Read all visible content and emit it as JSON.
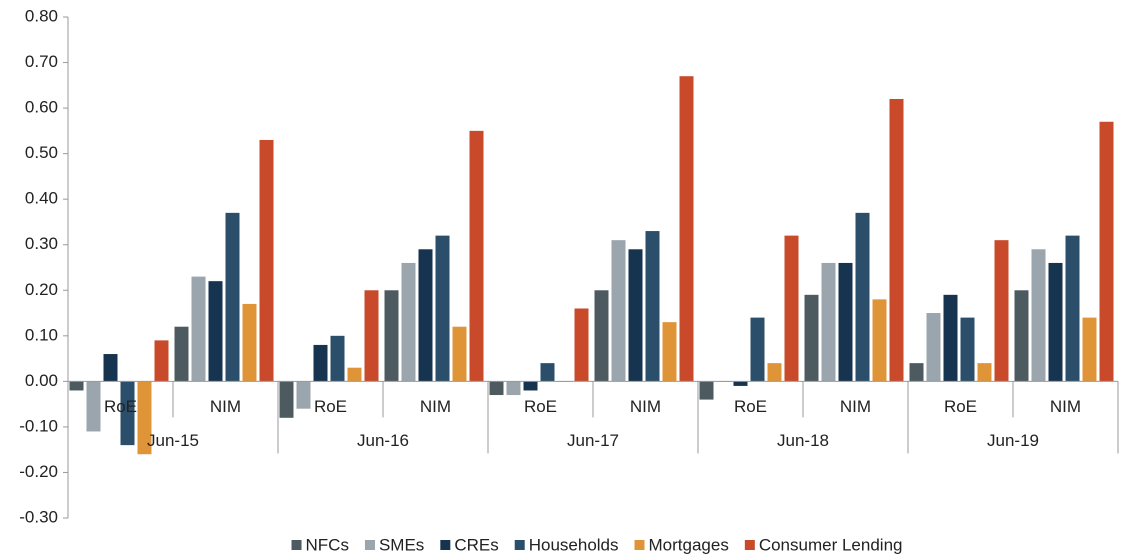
{
  "chart_data": {
    "type": "bar",
    "categories": [
      "RoE",
      "NIM",
      "RoE",
      "NIM",
      "RoE",
      "NIM",
      "RoE",
      "NIM",
      "RoE",
      "NIM"
    ],
    "category_groups": [
      "Jun-15",
      "Jun-16",
      "Jun-17",
      "Jun-18",
      "Jun-19"
    ],
    "series": [
      {
        "name": "NFCs",
        "color": "#4d5a60",
        "values": [
          -0.02,
          0.12,
          -0.08,
          0.2,
          -0.03,
          0.2,
          -0.04,
          0.19,
          0.04,
          0.2
        ]
      },
      {
        "name": "SMEs",
        "color": "#9aa5ad",
        "values": [
          -0.11,
          0.23,
          -0.06,
          0.26,
          -0.03,
          0.31,
          0.0,
          0.26,
          0.15,
          0.29
        ]
      },
      {
        "name": "CREs",
        "color": "#16334f",
        "values": [
          0.06,
          0.22,
          0.08,
          0.29,
          -0.02,
          0.29,
          -0.01,
          0.26,
          0.19,
          0.26
        ]
      },
      {
        "name": "Households",
        "color": "#2b4f6b",
        "values": [
          -0.14,
          0.37,
          0.1,
          0.32,
          0.04,
          0.33,
          0.14,
          0.37,
          0.14,
          0.32
        ]
      },
      {
        "name": "Mortgages",
        "color": "#e09438",
        "values": [
          -0.16,
          0.17,
          0.03,
          0.12,
          0.0,
          0.13,
          0.04,
          0.18,
          0.04,
          0.14
        ]
      },
      {
        "name": "Consumer Lending",
        "color": "#c94a2a",
        "values": [
          0.09,
          0.53,
          0.2,
          0.55,
          0.16,
          0.67,
          0.32,
          0.62,
          0.31,
          0.57
        ]
      }
    ],
    "ylim": [
      -0.3,
      0.8
    ],
    "yticks": [
      {
        "value": -0.3,
        "label": "-0.30"
      },
      {
        "value": -0.2,
        "label": "-0.20"
      },
      {
        "value": -0.1,
        "label": "-0.10"
      },
      {
        "value": 0,
        "label": "0.00"
      },
      {
        "value": 0.1,
        "label": "0.10"
      },
      {
        "value": 0.2,
        "label": "0.20"
      },
      {
        "value": 0.3,
        "label": "0.30"
      },
      {
        "value": 0.4,
        "label": "0.40"
      },
      {
        "value": 0.5,
        "label": "0.50"
      },
      {
        "value": 0.6,
        "label": "0.60"
      },
      {
        "value": 0.7,
        "label": "0.70"
      },
      {
        "value": 0.8,
        "label": "0.80"
      }
    ],
    "grid": false,
    "legend": "bottom"
  }
}
